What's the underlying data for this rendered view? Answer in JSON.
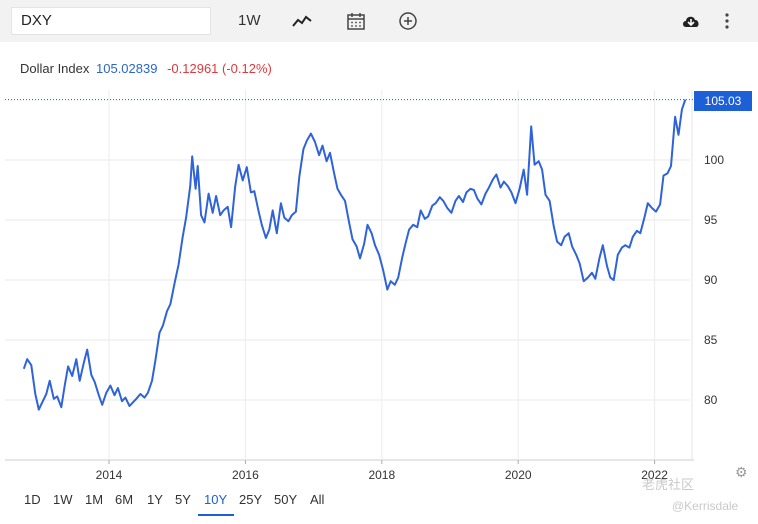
{
  "toolbar": {
    "symbol": "DXY",
    "interval": "1W",
    "icons": [
      "line-chart-icon",
      "calendar-icon",
      "plus-circle-icon",
      "download-cloud-icon",
      "more-vertical-icon"
    ]
  },
  "legend": {
    "name": "Dollar Index",
    "price": "105.02839",
    "change": "-0.12961 (-0.12%)"
  },
  "price_label": "105.03",
  "ranges": [
    "1D",
    "1W",
    "1M",
    "6M",
    "1Y",
    "5Y",
    "10Y",
    "25Y",
    "50Y",
    "All"
  ],
  "active_range": "10Y",
  "watermark": "老虎社区",
  "watermark_user": "@Kerrisdale",
  "colors": {
    "line": "#2f63d9",
    "accent": "#1d5fd6",
    "negative": "#e0393e"
  },
  "chart_data": {
    "type": "line",
    "title": "Dollar Index",
    "x_ticks": [
      "2014",
      "2016",
      "2018",
      "2020",
      "2022"
    ],
    "x_range": [
      2012.75,
      2022.45
    ],
    "y_ticks": [
      80,
      85,
      90,
      95,
      100
    ],
    "y_range": [
      75,
      108
    ],
    "last_value": 105.03,
    "grid": true,
    "series": [
      {
        "name": "Dollar Index",
        "points": [
          [
            2012.75,
            82.6
          ],
          [
            2012.8,
            83.4
          ],
          [
            2012.86,
            82.9
          ],
          [
            2012.92,
            80.5
          ],
          [
            2012.97,
            79.2
          ],
          [
            2013.02,
            79.8
          ],
          [
            2013.08,
            80.5
          ],
          [
            2013.13,
            81.6
          ],
          [
            2013.19,
            80.1
          ],
          [
            2013.24,
            80.3
          ],
          [
            2013.3,
            79.4
          ],
          [
            2013.35,
            81.2
          ],
          [
            2013.4,
            82.8
          ],
          [
            2013.46,
            82.0
          ],
          [
            2013.52,
            83.4
          ],
          [
            2013.57,
            81.6
          ],
          [
            2013.63,
            83.1
          ],
          [
            2013.68,
            84.2
          ],
          [
            2013.74,
            82.1
          ],
          [
            2013.79,
            81.5
          ],
          [
            2013.85,
            80.4
          ],
          [
            2013.9,
            79.6
          ],
          [
            2013.96,
            80.6
          ],
          [
            2014.02,
            81.2
          ],
          [
            2014.08,
            80.4
          ],
          [
            2014.13,
            81.0
          ],
          [
            2014.19,
            79.9
          ],
          [
            2014.24,
            80.2
          ],
          [
            2014.3,
            79.5
          ],
          [
            2014.35,
            79.8
          ],
          [
            2014.4,
            80.1
          ],
          [
            2014.46,
            80.5
          ],
          [
            2014.52,
            80.2
          ],
          [
            2014.57,
            80.6
          ],
          [
            2014.63,
            81.6
          ],
          [
            2014.68,
            83.3
          ],
          [
            2014.74,
            85.6
          ],
          [
            2014.79,
            86.2
          ],
          [
            2014.85,
            87.4
          ],
          [
            2014.9,
            88.0
          ],
          [
            2014.96,
            89.7
          ],
          [
            2015.02,
            91.3
          ],
          [
            2015.08,
            93.6
          ],
          [
            2015.13,
            95.2
          ],
          [
            2015.19,
            97.8
          ],
          [
            2015.22,
            100.3
          ],
          [
            2015.27,
            97.6
          ],
          [
            2015.3,
            99.5
          ],
          [
            2015.35,
            95.4
          ],
          [
            2015.4,
            94.8
          ],
          [
            2015.46,
            97.2
          ],
          [
            2015.52,
            95.6
          ],
          [
            2015.57,
            97.0
          ],
          [
            2015.63,
            95.4
          ],
          [
            2015.68,
            95.8
          ],
          [
            2015.74,
            96.1
          ],
          [
            2015.79,
            94.4
          ],
          [
            2015.85,
            97.8
          ],
          [
            2015.9,
            99.6
          ],
          [
            2015.96,
            98.3
          ],
          [
            2016.02,
            99.4
          ],
          [
            2016.08,
            97.3
          ],
          [
            2016.13,
            97.4
          ],
          [
            2016.19,
            95.8
          ],
          [
            2016.24,
            94.6
          ],
          [
            2016.3,
            93.5
          ],
          [
            2016.35,
            94.2
          ],
          [
            2016.4,
            95.8
          ],
          [
            2016.46,
            93.9
          ],
          [
            2016.52,
            96.4
          ],
          [
            2016.57,
            95.2
          ],
          [
            2016.63,
            94.9
          ],
          [
            2016.68,
            95.4
          ],
          [
            2016.74,
            95.7
          ],
          [
            2016.79,
            98.6
          ],
          [
            2016.85,
            100.9
          ],
          [
            2016.9,
            101.6
          ],
          [
            2016.96,
            102.2
          ],
          [
            2017.02,
            101.5
          ],
          [
            2017.08,
            100.4
          ],
          [
            2017.13,
            101.2
          ],
          [
            2017.19,
            99.9
          ],
          [
            2017.24,
            100.6
          ],
          [
            2017.3,
            98.9
          ],
          [
            2017.35,
            97.6
          ],
          [
            2017.4,
            97.1
          ],
          [
            2017.46,
            96.6
          ],
          [
            2017.52,
            94.8
          ],
          [
            2017.57,
            93.4
          ],
          [
            2017.63,
            92.8
          ],
          [
            2017.68,
            91.8
          ],
          [
            2017.74,
            93.0
          ],
          [
            2017.79,
            94.6
          ],
          [
            2017.85,
            93.9
          ],
          [
            2017.9,
            92.9
          ],
          [
            2017.96,
            92.1
          ],
          [
            2018.02,
            90.8
          ],
          [
            2018.08,
            89.2
          ],
          [
            2018.13,
            89.9
          ],
          [
            2018.19,
            89.6
          ],
          [
            2018.24,
            90.2
          ],
          [
            2018.3,
            91.9
          ],
          [
            2018.35,
            93.1
          ],
          [
            2018.4,
            94.2
          ],
          [
            2018.46,
            94.6
          ],
          [
            2018.52,
            94.4
          ],
          [
            2018.57,
            95.8
          ],
          [
            2018.63,
            95.1
          ],
          [
            2018.68,
            95.3
          ],
          [
            2018.74,
            96.2
          ],
          [
            2018.79,
            96.4
          ],
          [
            2018.85,
            96.9
          ],
          [
            2018.9,
            96.6
          ],
          [
            2018.96,
            96.0
          ],
          [
            2019.02,
            95.6
          ],
          [
            2019.08,
            96.6
          ],
          [
            2019.13,
            97.0
          ],
          [
            2019.19,
            96.5
          ],
          [
            2019.24,
            97.3
          ],
          [
            2019.3,
            97.6
          ],
          [
            2019.35,
            97.5
          ],
          [
            2019.4,
            96.8
          ],
          [
            2019.46,
            96.3
          ],
          [
            2019.52,
            97.2
          ],
          [
            2019.57,
            97.7
          ],
          [
            2019.63,
            98.4
          ],
          [
            2019.68,
            98.8
          ],
          [
            2019.74,
            97.7
          ],
          [
            2019.79,
            98.2
          ],
          [
            2019.85,
            97.8
          ],
          [
            2019.9,
            97.3
          ],
          [
            2019.96,
            96.4
          ],
          [
            2020.02,
            97.6
          ],
          [
            2020.08,
            99.2
          ],
          [
            2020.13,
            97.1
          ],
          [
            2020.19,
            102.8
          ],
          [
            2020.24,
            99.6
          ],
          [
            2020.3,
            99.9
          ],
          [
            2020.35,
            99.2
          ],
          [
            2020.4,
            97.1
          ],
          [
            2020.46,
            96.6
          ],
          [
            2020.52,
            94.5
          ],
          [
            2020.57,
            93.2
          ],
          [
            2020.63,
            92.9
          ],
          [
            2020.68,
            93.6
          ],
          [
            2020.74,
            93.9
          ],
          [
            2020.79,
            92.8
          ],
          [
            2020.85,
            92.1
          ],
          [
            2020.9,
            91.4
          ],
          [
            2020.96,
            89.9
          ],
          [
            2021.02,
            90.2
          ],
          [
            2021.08,
            90.6
          ],
          [
            2021.13,
            90.1
          ],
          [
            2021.19,
            91.8
          ],
          [
            2021.24,
            92.9
          ],
          [
            2021.3,
            91.2
          ],
          [
            2021.35,
            90.2
          ],
          [
            2021.4,
            90.0
          ],
          [
            2021.46,
            92.1
          ],
          [
            2021.52,
            92.7
          ],
          [
            2021.57,
            92.9
          ],
          [
            2021.63,
            92.7
          ],
          [
            2021.68,
            93.6
          ],
          [
            2021.74,
            94.1
          ],
          [
            2021.79,
            93.9
          ],
          [
            2021.85,
            95.2
          ],
          [
            2021.9,
            96.4
          ],
          [
            2021.96,
            96.0
          ],
          [
            2022.02,
            95.7
          ],
          [
            2022.08,
            96.3
          ],
          [
            2022.13,
            98.7
          ],
          [
            2022.19,
            98.9
          ],
          [
            2022.24,
            99.5
          ],
          [
            2022.3,
            103.6
          ],
          [
            2022.35,
            102.1
          ],
          [
            2022.4,
            104.2
          ],
          [
            2022.45,
            105.03
          ]
        ]
      }
    ]
  }
}
